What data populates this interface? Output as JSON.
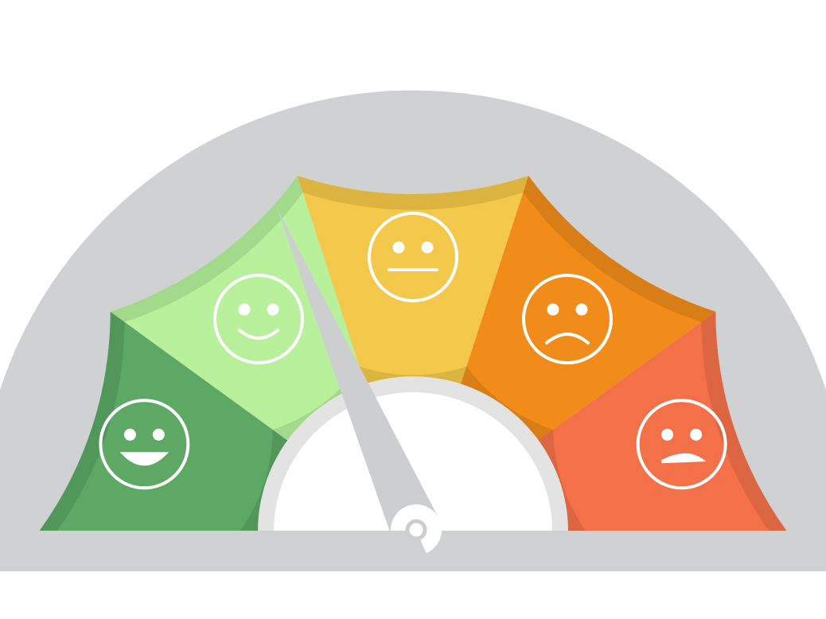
{
  "gauge": {
    "segments": [
      {
        "label": "very-happy",
        "color": "#5da865",
        "rim": "#52975a",
        "face": "big-smile"
      },
      {
        "label": "happy",
        "color": "#b8f09b",
        "rim": "#a3d98b",
        "face": "smile"
      },
      {
        "label": "neutral",
        "color": "#f4c84a",
        "rim": "#dcb540",
        "face": "neutral"
      },
      {
        "label": "sad",
        "color": "#f18b1a",
        "rim": "#d97d17",
        "face": "frown"
      },
      {
        "label": "very-sad",
        "color": "#f47049",
        "rim": "#dc6542",
        "face": "big-frown"
      }
    ],
    "needle_value": 0.37,
    "frame_color": "#d0d1d3",
    "needle_color": "#cdced0"
  }
}
